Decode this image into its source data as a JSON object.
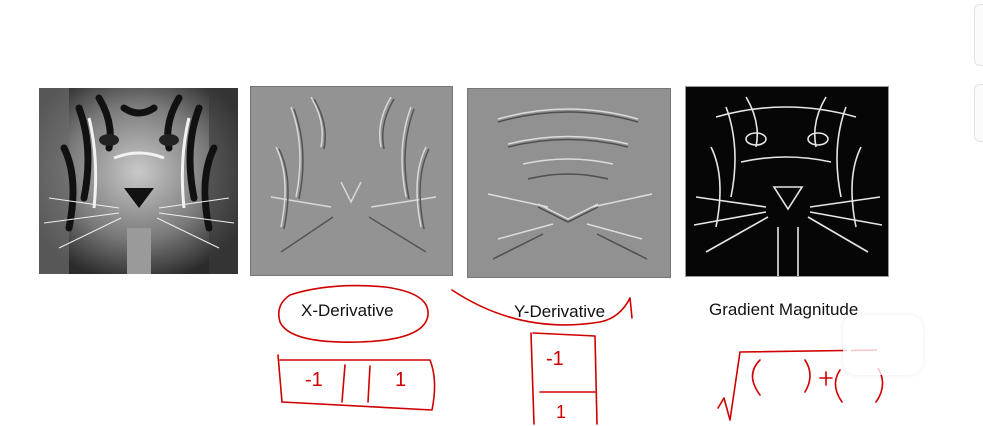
{
  "slide": {
    "panels": [
      {
        "name": "tiger-original",
        "kind": "original"
      },
      {
        "name": "tiger-x-derivative",
        "kind": "x"
      },
      {
        "name": "tiger-y-derivative",
        "kind": "y"
      },
      {
        "name": "tiger-gradient-magnitude",
        "kind": "mag"
      }
    ],
    "labels": {
      "x_derivative": "X-Derivative",
      "y_derivative": "Y-Derivative",
      "gradient_magnitude": "Gradient Magnitude"
    },
    "annotations": {
      "x_kernel": [
        "-1",
        "1"
      ],
      "y_kernel": [
        "-1",
        "1"
      ],
      "ink_color": "#d10000"
    }
  }
}
